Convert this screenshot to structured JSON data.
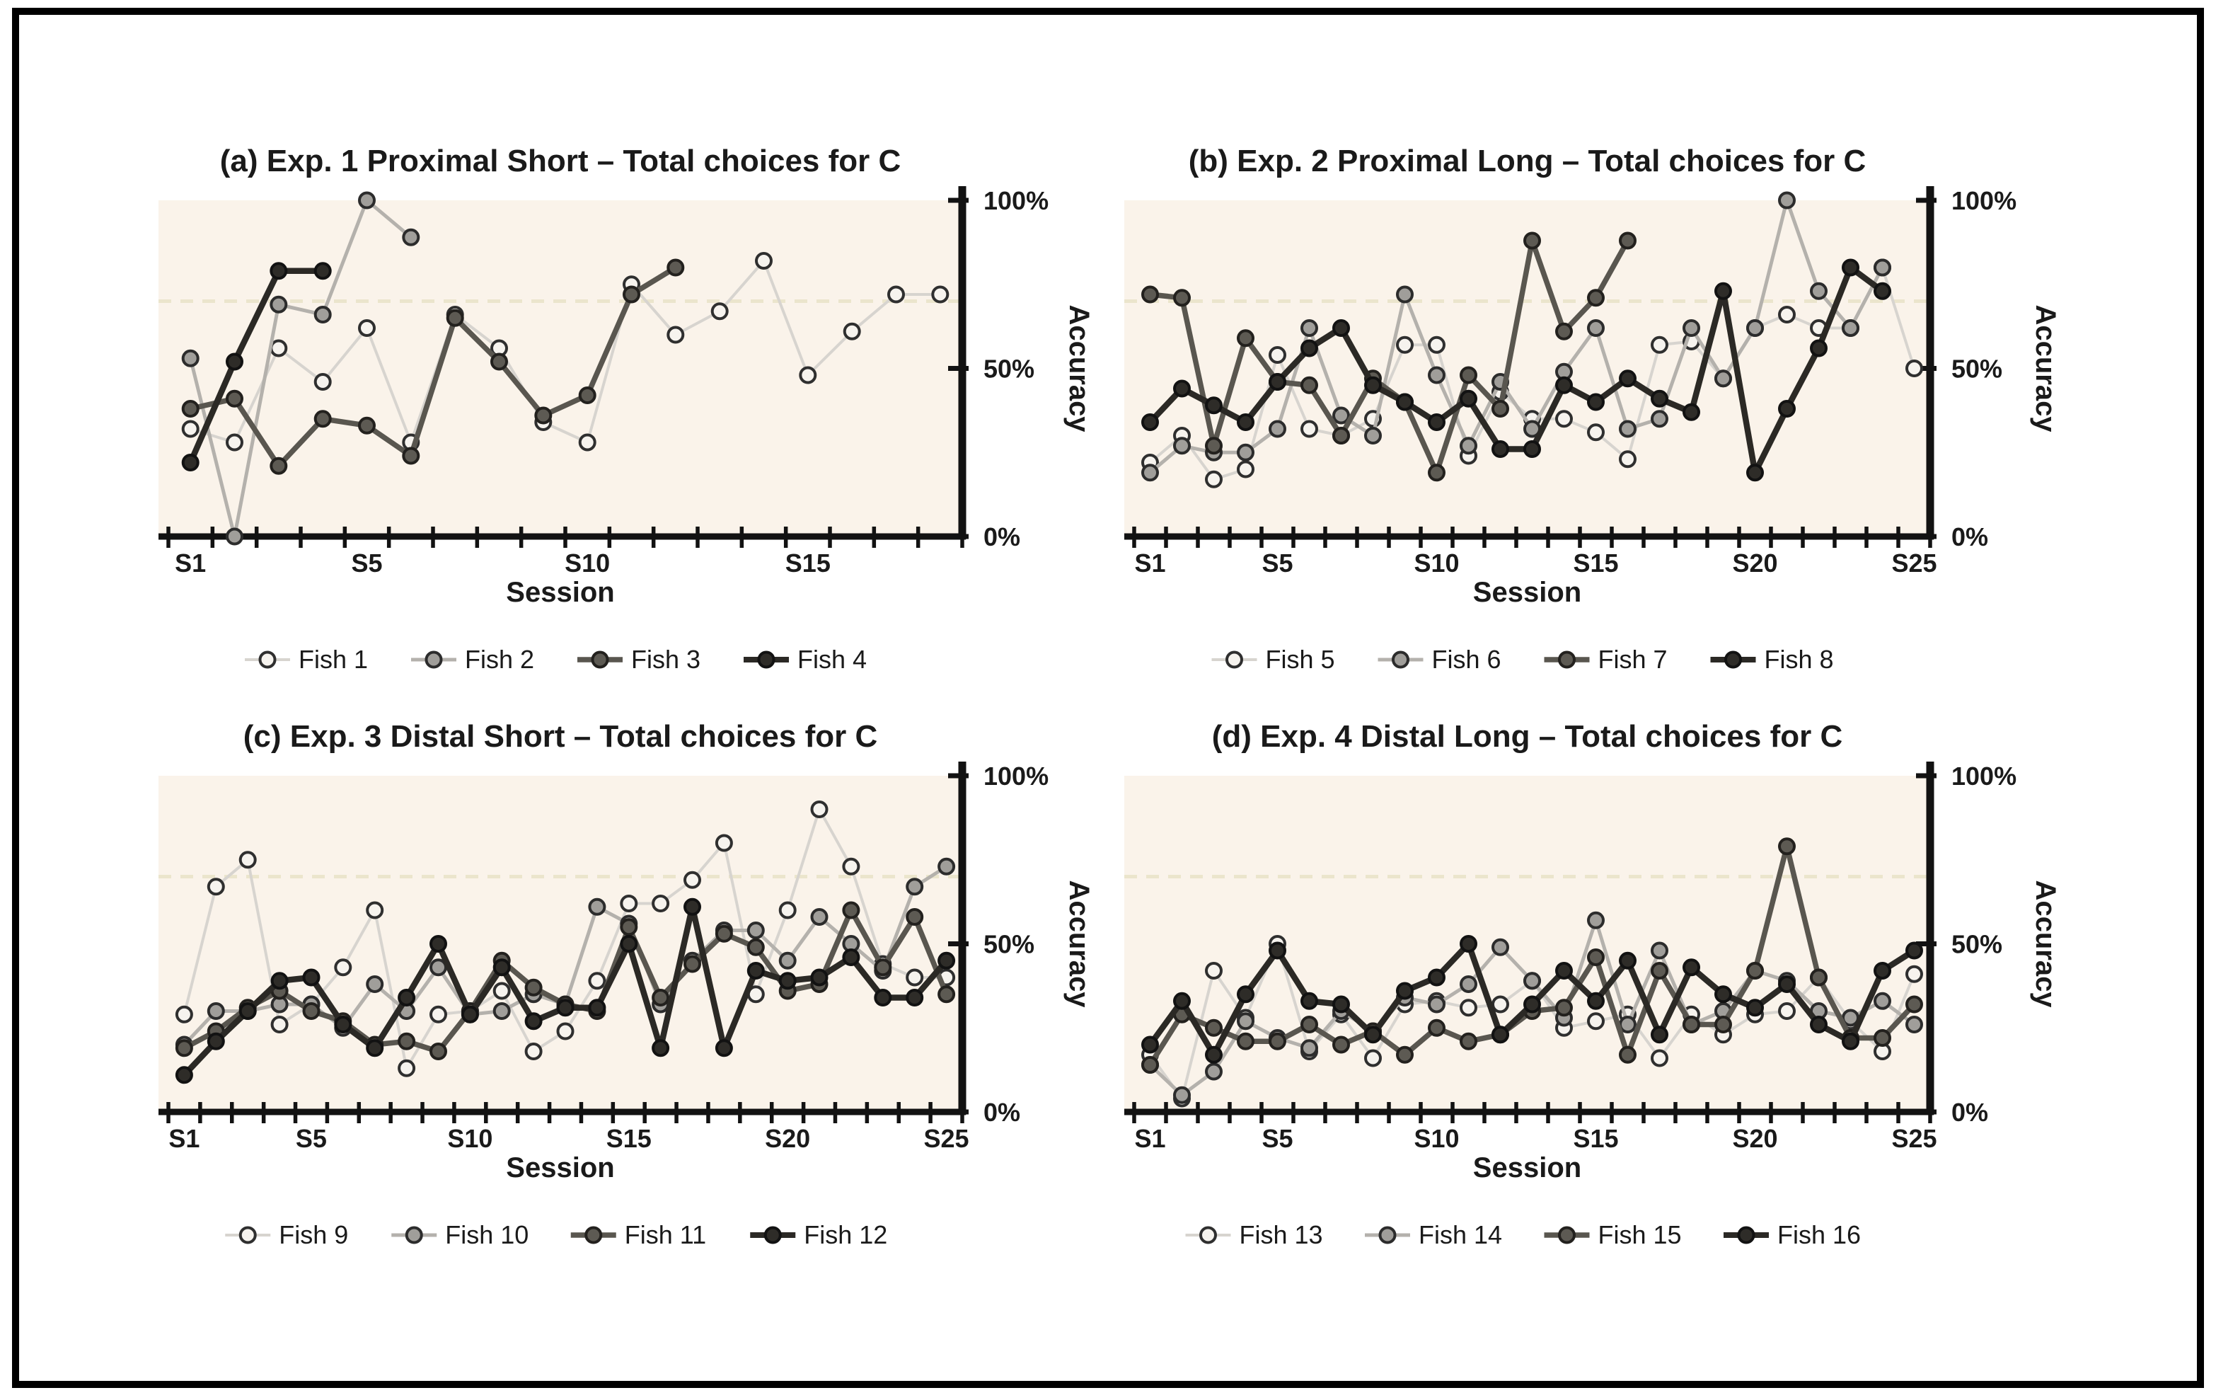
{
  "figure": {
    "kind": "four-panel line figure",
    "xlabel": "Session",
    "ylabel": "Accuracy",
    "y_ticks": [
      "0%",
      "50%",
      "100%"
    ],
    "reference_line_value": 70
  },
  "style": {
    "frame_color": "#000000",
    "page_bg": "#ffffff",
    "plot_bg": "#faf3ea",
    "axis_color": "#121212",
    "text_color": "#1a1a1a",
    "reference_line_color": "#ebe5cc",
    "series_palette": [
      {
        "key": "lightest",
        "line": "#d7d4cf",
        "marker_fill": "#f6f3ee",
        "marker_stroke": "#2f2f2f",
        "width": 4
      },
      {
        "key": "light-gray",
        "line": "#b4b1ac",
        "marker_fill": "#a09e9a",
        "marker_stroke": "#2c2c2c",
        "width": 5
      },
      {
        "key": "dark-gray",
        "line": "#59564f",
        "marker_fill": "#5d5a53",
        "marker_stroke": "#23211e",
        "width": 7.5
      },
      {
        "key": "black",
        "line": "#2b2925",
        "marker_fill": "#2e2c28",
        "marker_stroke": "#121212",
        "width": 8.5
      }
    ]
  },
  "chart_data": [
    {
      "id": "a",
      "type": "line",
      "title": "(a) Exp. 1 Proximal Short – Total choices for C",
      "xlabel": "Session",
      "ylabel": "Accuracy",
      "ylim": [
        0,
        100
      ],
      "n_sessions": 18,
      "reference_line": 70,
      "x_tick_labels": [
        {
          "session": 1,
          "label": "S1"
        },
        {
          "session": 5,
          "label": "S5"
        },
        {
          "session": 10,
          "label": "S10"
        },
        {
          "session": 15,
          "label": "S15"
        }
      ],
      "series": [
        {
          "name": "Fish 1",
          "palette": 0,
          "start_session": 1,
          "values": [
            32,
            28,
            56,
            46,
            62,
            28,
            66,
            56,
            34,
            28,
            75,
            60,
            67,
            82,
            48,
            61,
            72,
            72
          ]
        },
        {
          "name": "Fish 2",
          "palette": 1,
          "start_session": 1,
          "values": [
            53,
            0,
            69,
            66,
            100,
            89
          ]
        },
        {
          "name": "Fish 3",
          "palette": 2,
          "start_session": 1,
          "values": [
            38,
            41,
            21,
            35,
            33,
            24,
            65,
            52,
            36,
            42,
            72,
            80
          ]
        },
        {
          "name": "Fish 4",
          "palette": 3,
          "start_session": 1,
          "values": [
            22,
            52,
            79,
            79
          ]
        }
      ]
    },
    {
      "id": "b",
      "type": "line",
      "title": "(b) Exp. 2 Proximal Long – Total choices for C",
      "xlabel": "Session",
      "ylabel": "Accuracy",
      "ylim": [
        0,
        100
      ],
      "n_sessions": 25,
      "reference_line": 70,
      "x_tick_labels": [
        {
          "session": 1,
          "label": "S1"
        },
        {
          "session": 5,
          "label": "S5"
        },
        {
          "session": 10,
          "label": "S10"
        },
        {
          "session": 15,
          "label": "S15"
        },
        {
          "session": 20,
          "label": "S20"
        },
        {
          "session": 25,
          "label": "S25"
        }
      ],
      "series": [
        {
          "name": "Fish 5",
          "palette": 0,
          "start_session": 1,
          "values": [
            22,
            30,
            17,
            20,
            54,
            32,
            30,
            35,
            57,
            57,
            24,
            43,
            35,
            35,
            31,
            23,
            57,
            58,
            47,
            62,
            66,
            62,
            62,
            80,
            50
          ]
        },
        {
          "name": "Fish 6",
          "palette": 1,
          "start_session": 1,
          "values": [
            19,
            27,
            25,
            25,
            32,
            62,
            36,
            30,
            72,
            48,
            27,
            46,
            32,
            49,
            62,
            32,
            35,
            62,
            47,
            62,
            100,
            73,
            62,
            80
          ]
        },
        {
          "name": "Fish 7",
          "palette": 2,
          "start_session": 1,
          "values": [
            72,
            71,
            27,
            59,
            46,
            45,
            30,
            47,
            40,
            19,
            48,
            38,
            88,
            61,
            71,
            88
          ]
        },
        {
          "name": "Fish 8",
          "palette": 3,
          "start_session": 1,
          "values": [
            34,
            44,
            39,
            34,
            46,
            56,
            62,
            45,
            40,
            34,
            41,
            26,
            26,
            45,
            40,
            47,
            41,
            37,
            73,
            19,
            38,
            56,
            80,
            73
          ]
        }
      ]
    },
    {
      "id": "c",
      "type": "line",
      "title": "(c) Exp. 3 Distal Short – Total choices for C",
      "xlabel": "Session",
      "ylabel": "Accuracy",
      "ylim": [
        0,
        100
      ],
      "n_sessions": 25,
      "reference_line": 70,
      "x_tick_labels": [
        {
          "session": 1,
          "label": "S1"
        },
        {
          "session": 5,
          "label": "S5"
        },
        {
          "session": 10,
          "label": "S10"
        },
        {
          "session": 15,
          "label": "S15"
        },
        {
          "session": 20,
          "label": "S20"
        },
        {
          "session": 25,
          "label": "S25"
        }
      ],
      "series": [
        {
          "name": "Fish 9",
          "palette": 0,
          "start_session": 1,
          "values": [
            29,
            67,
            75,
            26,
            32,
            43,
            60,
            13,
            29,
            30,
            36,
            18,
            24,
            39,
            62,
            62,
            69,
            80,
            35,
            60,
            90,
            73,
            44,
            40,
            40
          ]
        },
        {
          "name": "Fish 10",
          "palette": 1,
          "start_session": 1,
          "values": [
            20,
            30,
            30,
            32,
            32,
            25,
            38,
            30,
            43,
            29,
            30,
            35,
            32,
            61,
            56,
            32,
            45,
            54,
            54,
            45,
            58,
            50,
            42,
            67,
            73
          ]
        },
        {
          "name": "Fish 11",
          "palette": 2,
          "start_session": 1,
          "values": [
            19,
            24,
            31,
            36,
            30,
            27,
            20,
            21,
            18,
            30,
            45,
            37,
            32,
            30,
            55,
            34,
            44,
            53,
            49,
            36,
            38,
            60,
            43,
            58,
            35
          ]
        },
        {
          "name": "Fish 12",
          "palette": 3,
          "start_session": 1,
          "values": [
            11,
            21,
            30,
            39,
            40,
            26,
            19,
            34,
            50,
            29,
            43,
            27,
            31,
            31,
            50,
            19,
            61,
            19,
            42,
            39,
            40,
            46,
            34,
            34,
            45
          ]
        }
      ]
    },
    {
      "id": "d",
      "type": "line",
      "title": "(d) Exp. 4 Distal Long – Total choices for C",
      "xlabel": "Session",
      "ylabel": "Accuracy",
      "ylim": [
        0,
        100
      ],
      "n_sessions": 25,
      "reference_line": 70,
      "x_tick_labels": [
        {
          "session": 1,
          "label": "S1"
        },
        {
          "session": 5,
          "label": "S5"
        },
        {
          "session": 10,
          "label": "S10"
        },
        {
          "session": 15,
          "label": "S15"
        },
        {
          "session": 20,
          "label": "S20"
        },
        {
          "session": 25,
          "label": "S25"
        }
      ],
      "series": [
        {
          "name": "Fish 13",
          "palette": 0,
          "start_session": 1,
          "values": [
            17,
            4,
            42,
            28,
            50,
            18,
            29,
            16,
            32,
            33,
            31,
            32,
            39,
            25,
            27,
            29,
            16,
            29,
            23,
            29,
            30,
            40,
            27,
            18,
            41
          ]
        },
        {
          "name": "Fish 14",
          "palette": 1,
          "start_session": 1,
          "values": [
            14,
            5,
            12,
            27,
            22,
            19,
            30,
            24,
            34,
            32,
            38,
            49,
            39,
            28,
            57,
            26,
            48,
            26,
            30,
            42,
            39,
            30,
            28,
            33,
            26
          ]
        },
        {
          "name": "Fish 15",
          "palette": 2,
          "start_session": 1,
          "values": [
            14,
            29,
            25,
            21,
            21,
            26,
            20,
            24,
            17,
            25,
            21,
            23,
            30,
            31,
            46,
            17,
            42,
            26,
            26,
            42,
            79,
            40,
            22,
            22,
            32
          ]
        },
        {
          "name": "Fish 16",
          "palette": 3,
          "start_session": 1,
          "values": [
            20,
            33,
            17,
            35,
            48,
            33,
            32,
            23,
            36,
            40,
            50,
            23,
            32,
            42,
            33,
            45,
            23,
            43,
            35,
            31,
            38,
            26,
            21,
            42,
            48
          ]
        }
      ]
    }
  ]
}
